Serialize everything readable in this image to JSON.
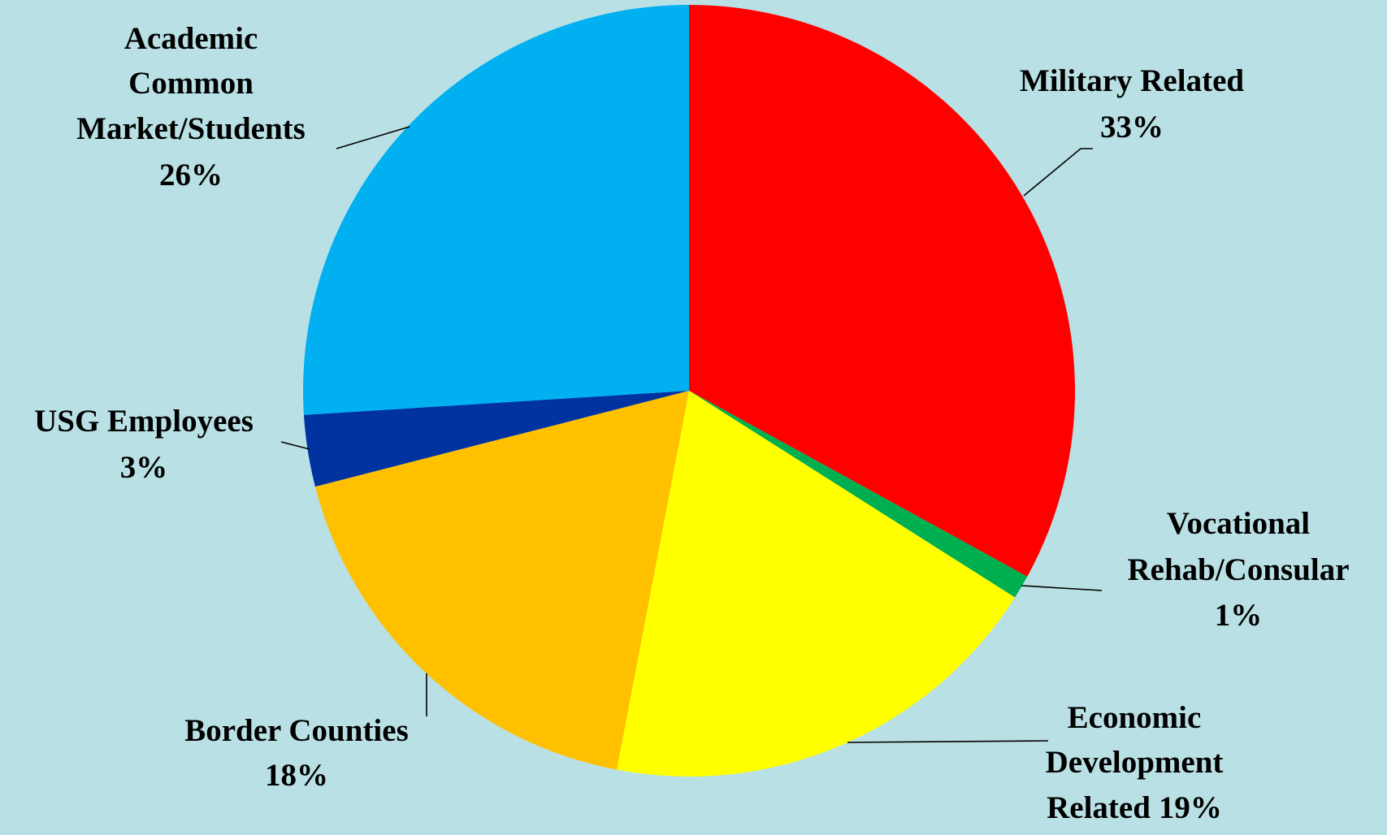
{
  "chart_data": {
    "type": "pie",
    "categories": [
      "Military Related",
      "Vocational Rehab/Consular",
      "Economic Development Related",
      "Border Counties",
      "USG Employees",
      "Academic Common Market/Students"
    ],
    "values": [
      33,
      1,
      19,
      18,
      3,
      26
    ],
    "value_labels": [
      "33%",
      "1%",
      "19%",
      "18%",
      "3%",
      "26%"
    ],
    "colors": [
      "#ff0000",
      "#00b050",
      "#ffff00",
      "#ffc000",
      "#0033a0",
      "#00b0f0"
    ]
  }
}
